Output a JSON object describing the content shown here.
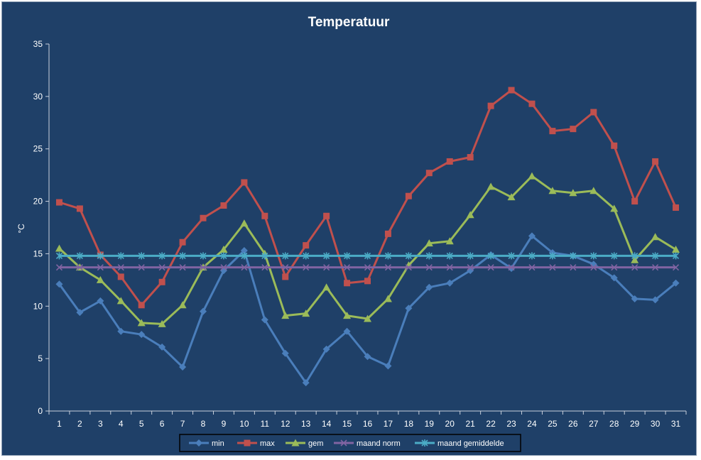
{
  "chart_data": {
    "type": "line",
    "title": "Temperatuur",
    "ylabel": "°C",
    "xlabel": "",
    "ylim": [
      0,
      35
    ],
    "yticks": [
      0,
      5,
      10,
      15,
      20,
      25,
      30,
      35
    ],
    "grid": false,
    "legend_position": "bottom",
    "categories": [
      "1",
      "2",
      "3",
      "4",
      "5",
      "6",
      "7",
      "8",
      "9",
      "10",
      "11",
      "12",
      "13",
      "14",
      "15",
      "16",
      "17",
      "18",
      "19",
      "20",
      "21",
      "22",
      "23",
      "24",
      "25",
      "26",
      "27",
      "28",
      "29",
      "30",
      "31"
    ],
    "series": [
      {
        "name": "min",
        "color": "#4a7ebb",
        "marker": "diamond",
        "values": [
          12.1,
          9.4,
          10.5,
          7.6,
          7.3,
          6.1,
          4.2,
          9.5,
          13.4,
          15.3,
          8.7,
          5.5,
          2.7,
          5.9,
          7.6,
          5.2,
          4.3,
          9.8,
          11.8,
          12.2,
          13.4,
          14.9,
          13.6,
          16.7,
          15.1,
          14.8,
          14.0,
          12.7,
          10.7,
          10.6,
          12.2
        ]
      },
      {
        "name": "max",
        "color": "#c0504d",
        "marker": "square",
        "values": [
          19.9,
          19.3,
          14.9,
          12.8,
          10.1,
          12.3,
          16.1,
          18.4,
          19.6,
          21.8,
          18.6,
          12.8,
          15.8,
          18.6,
          12.2,
          12.4,
          16.9,
          20.5,
          22.7,
          23.8,
          24.2,
          29.1,
          30.6,
          29.3,
          26.7,
          26.9,
          28.5,
          25.3,
          20.0,
          23.8,
          19.4
        ]
      },
      {
        "name": "gem",
        "color": "#9bbb59",
        "marker": "triangle",
        "values": [
          15.5,
          13.7,
          12.5,
          10.5,
          8.4,
          8.3,
          10.1,
          13.7,
          15.4,
          17.9,
          15.0,
          9.1,
          9.3,
          11.8,
          9.1,
          8.8,
          10.7,
          13.9,
          16.0,
          16.2,
          18.7,
          21.4,
          20.4,
          22.4,
          21.0,
          20.8,
          21.0,
          19.3,
          14.4,
          16.6,
          15.4
        ]
      },
      {
        "name": "maand norm",
        "color": "#8064a2",
        "marker": "x",
        "values": [
          13.7,
          13.7,
          13.7,
          13.7,
          13.7,
          13.7,
          13.7,
          13.7,
          13.7,
          13.7,
          13.7,
          13.7,
          13.7,
          13.7,
          13.7,
          13.7,
          13.7,
          13.7,
          13.7,
          13.7,
          13.7,
          13.7,
          13.7,
          13.7,
          13.7,
          13.7,
          13.7,
          13.7,
          13.7,
          13.7,
          13.7
        ]
      },
      {
        "name": "maand gemiddelde",
        "color": "#4bacc6",
        "marker": "star",
        "values": [
          14.8,
          14.8,
          14.8,
          14.8,
          14.8,
          14.8,
          14.8,
          14.8,
          14.8,
          14.8,
          14.8,
          14.8,
          14.8,
          14.8,
          14.8,
          14.8,
          14.8,
          14.8,
          14.8,
          14.8,
          14.8,
          14.8,
          14.8,
          14.8,
          14.8,
          14.8,
          14.8,
          14.8,
          14.8,
          14.8,
          14.8
        ]
      }
    ]
  }
}
